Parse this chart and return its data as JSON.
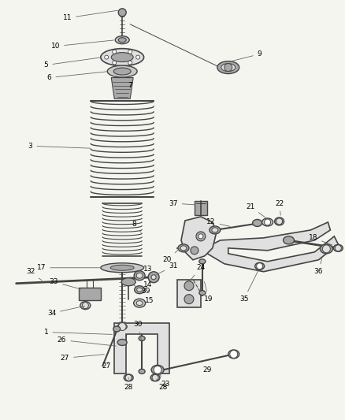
{
  "background_color": "#f5f5f0",
  "fig_width": 4.38,
  "fig_height": 5.33,
  "dpi": 100,
  "line_color": "#444444",
  "label_color": "#000000",
  "label_fontsize": 6.5,
  "leader_color": "#666666",
  "part_color": "#c8c8c8",
  "part_color2": "#a8a8a8",
  "part_color3": "#e0e0e0"
}
